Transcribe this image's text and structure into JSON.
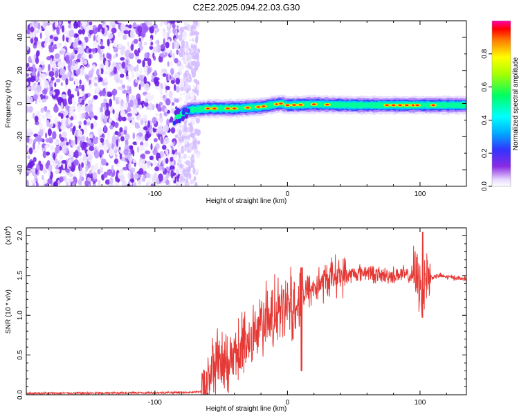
{
  "page_title": "C2E2.2025.094.22.03.G30",
  "chart_data": [
    {
      "type": "heatmap",
      "title": "C2E2.2025.094.22.03.G30",
      "xlabel": "Height of straight line (km)",
      "ylabel": "Frequency (Hz)",
      "xlim": [
        -197,
        135
      ],
      "ylim": [
        -50,
        50
      ],
      "x_ticks": [
        -100,
        0,
        100
      ],
      "x_tick_labels": [
        "-100",
        "0",
        "100"
      ],
      "y_ticks": [
        -40,
        -20,
        0,
        20,
        40
      ],
      "y_tick_labels": [
        "-40",
        "-20",
        "0",
        "20",
        "40"
      ],
      "colorbar": {
        "label": "Normalized spectral amplitude",
        "range": [
          0.0,
          1.0
        ],
        "ticks": [
          0.0,
          0.2,
          0.4,
          0.6,
          0.8
        ],
        "tick_labels": [
          "0.0",
          "0.2",
          "0.4",
          "0.6",
          "0.8"
        ]
      },
      "signal_band": {
        "description_free": true,
        "start_height_km": -85,
        "end_height_km": 135,
        "center_frequency_hz": [
          [
            -85,
            -9
          ],
          [
            -75,
            -4
          ],
          [
            -60,
            -3
          ],
          [
            -40,
            -3
          ],
          [
            -20,
            -2
          ],
          [
            -5,
            0
          ],
          [
            0,
            -1
          ],
          [
            20,
            -0.5
          ],
          [
            50,
            -1
          ],
          [
            80,
            -1
          ],
          [
            100,
            -1
          ],
          [
            135,
            -1
          ]
        ],
        "peak_amplitude": 1.0
      },
      "noise_region_km": [
        -197,
        -72
      ]
    },
    {
      "type": "line",
      "xlabel": "Height of straight line (km)",
      "ylabel": "SNR (10 * v/v)",
      "scale_label": "(x10",
      "scale_exponent": "4",
      "xlim": [
        -197,
        135
      ],
      "ylim": [
        0,
        2.1
      ],
      "x_ticks": [
        -100,
        0,
        100
      ],
      "x_tick_labels": [
        "-100",
        "0",
        "100"
      ],
      "y_ticks": [
        0.0,
        0.5,
        1.0,
        1.5,
        2.0
      ],
      "y_tick_labels": [
        "0.0",
        "0.5",
        "1.0",
        "1.5",
        "2.0"
      ],
      "series": [
        {
          "name": "SNR",
          "color": "#e53935",
          "x": [
            -197,
            -180,
            -160,
            -140,
            -120,
            -100,
            -80,
            -70,
            -64,
            -60,
            -55,
            -50,
            -45,
            -40,
            -35,
            -30,
            -25,
            -20,
            -15,
            -10,
            -5,
            0,
            5,
            10,
            15,
            20,
            25,
            30,
            35,
            40,
            45,
            50,
            55,
            60,
            65,
            70,
            75,
            80,
            85,
            90,
            95,
            100,
            102,
            105,
            110,
            115,
            120,
            125,
            130,
            135
          ],
          "values": [
            0.02,
            0.02,
            0.02,
            0.02,
            0.025,
            0.025,
            0.03,
            0.03,
            0.05,
            0.15,
            0.35,
            0.4,
            0.3,
            0.5,
            0.55,
            0.7,
            0.8,
            0.9,
            0.95,
            1.0,
            1.05,
            1.1,
            1.15,
            1.2,
            1.3,
            1.35,
            1.4,
            1.45,
            1.5,
            1.5,
            1.5,
            1.52,
            1.53,
            1.55,
            1.52,
            1.5,
            1.5,
            1.5,
            1.52,
            1.5,
            1.5,
            1.45,
            1.4,
            1.5,
            1.48,
            1.5,
            1.48,
            1.48,
            1.46,
            1.46
          ]
        }
      ]
    }
  ]
}
